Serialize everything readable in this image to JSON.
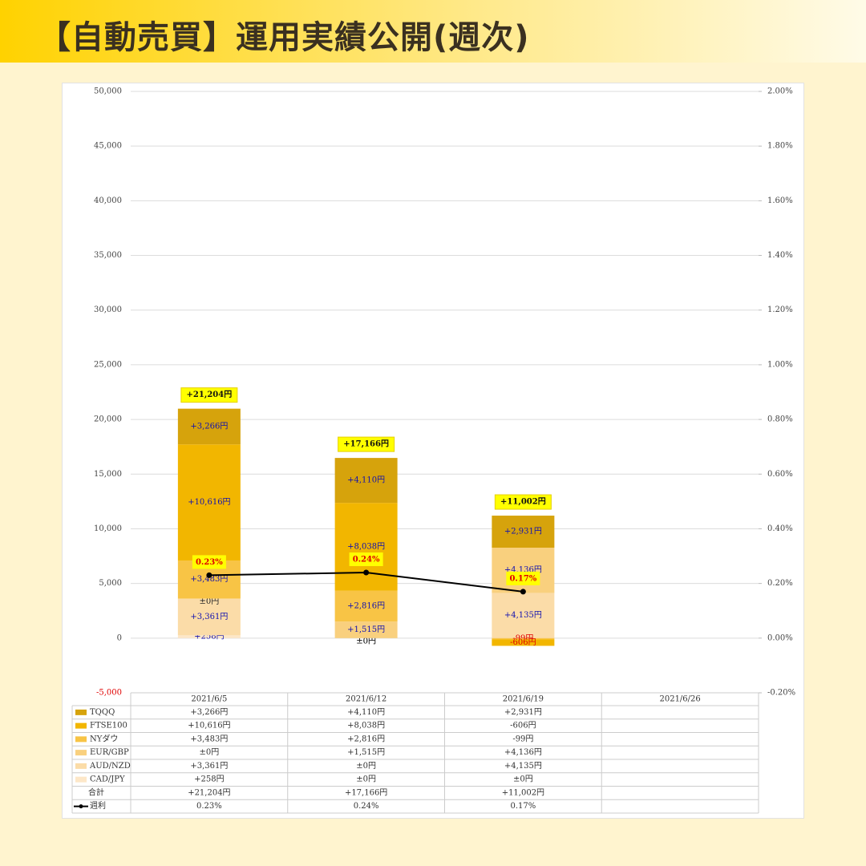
{
  "header": {
    "title": "【自動売買】運用実績公開(週次)"
  },
  "chart_data": {
    "type": "bar",
    "categories": [
      "2021/6/5",
      "2021/6/12",
      "2021/6/19",
      "2021/6/26"
    ],
    "series": [
      {
        "name": "TQQQ",
        "color": "#d6a30c",
        "values": [
          3266,
          4110,
          2931,
          null
        ],
        "value_labels": [
          "+3,266円",
          "+4,110円",
          "+2,931円",
          null
        ]
      },
      {
        "name": "FTSE100",
        "color": "#f2b600",
        "values": [
          10616,
          8038,
          -606,
          null
        ],
        "value_labels": [
          "+10,616円",
          "+8,038円",
          "-606円",
          null
        ]
      },
      {
        "name": "NYダウ",
        "color": "#f8c445",
        "values": [
          3483,
          2816,
          -99,
          null
        ],
        "value_labels": [
          "+3,483円",
          "+2,816円",
          "-99円",
          null
        ]
      },
      {
        "name": "EUR/GBP",
        "color": "#f9d07e",
        "values": [
          0,
          1515,
          4136,
          null
        ],
        "value_labels": [
          "±0円",
          "+1,515円",
          "+4,136円",
          null
        ]
      },
      {
        "name": "AUD/NZD",
        "color": "#fbdca8",
        "values": [
          3361,
          0,
          4135,
          null
        ],
        "value_labels": [
          "+3,361円",
          "±0円",
          "+4,135円",
          null
        ]
      },
      {
        "name": "CAD/JPY",
        "color": "#fde7c8",
        "values": [
          258,
          0,
          0,
          null
        ],
        "value_labels": [
          "+258円",
          "±0円",
          "±0円",
          null
        ]
      },
      {
        "name": "週利",
        "type": "line",
        "axis": "y2",
        "color": "#000000",
        "values": [
          0.23,
          0.24,
          0.17,
          null
        ],
        "value_labels": [
          "0.23%",
          "0.24%",
          "0.17%",
          null
        ]
      }
    ],
    "totals": {
      "name": "合計",
      "values": [
        21204,
        17166,
        11002,
        null
      ],
      "value_labels": [
        "+21,204円",
        "+17,166円",
        "+11,002円",
        null
      ]
    },
    "ylim": [
      -5000,
      50000
    ],
    "yticks": [
      {
        "value": -5000,
        "label": "-5,000"
      },
      0,
      {
        "value": 5000,
        "label": "5,000"
      },
      {
        "value": 10000,
        "label": "10,000"
      },
      {
        "value": 15000,
        "label": "15,000"
      },
      {
        "value": 20000,
        "label": "20,000"
      },
      {
        "value": 25000,
        "label": "25,000"
      },
      {
        "value": 30000,
        "label": "30,000"
      },
      {
        "value": 35000,
        "label": "35,000"
      },
      {
        "value": 40000,
        "label": "40,000"
      },
      {
        "value": 45000,
        "label": "45,000"
      },
      {
        "value": 50000,
        "label": "50,000"
      }
    ],
    "y2lim": [
      -0.2,
      2.0
    ],
    "y2ticks": [
      {
        "value": -0.2,
        "label": "-0.20%"
      },
      {
        "value": 0,
        "label": "0.00%"
      },
      {
        "value": 0.2,
        "label": "0.20%"
      },
      {
        "value": 0.4,
        "label": "0.40%"
      },
      {
        "value": 0.6,
        "label": "0.60%"
      },
      {
        "value": 0.8,
        "label": "0.80%"
      },
      {
        "value": 1.0,
        "label": "1.00%"
      },
      {
        "value": 1.2,
        "label": "1.20%"
      },
      {
        "value": 1.4,
        "label": "1.40%"
      },
      {
        "value": 1.6,
        "label": "1.60%"
      },
      {
        "value": 1.8,
        "label": "1.80%"
      },
      {
        "value": 2.0,
        "label": "2.00%"
      }
    ],
    "grid": true
  }
}
